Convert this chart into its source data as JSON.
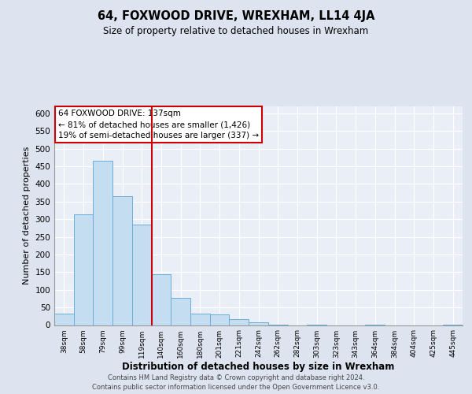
{
  "title": "64, FOXWOOD DRIVE, WREXHAM, LL14 4JA",
  "subtitle": "Size of property relative to detached houses in Wrexham",
  "xlabel": "Distribution of detached houses by size in Wrexham",
  "ylabel": "Number of detached properties",
  "bin_labels": [
    "38sqm",
    "58sqm",
    "79sqm",
    "99sqm",
    "119sqm",
    "140sqm",
    "160sqm",
    "180sqm",
    "201sqm",
    "221sqm",
    "242sqm",
    "262sqm",
    "282sqm",
    "303sqm",
    "323sqm",
    "343sqm",
    "364sqm",
    "384sqm",
    "404sqm",
    "425sqm",
    "445sqm"
  ],
  "bar_heights": [
    32,
    315,
    465,
    365,
    285,
    145,
    77,
    33,
    30,
    17,
    7,
    2,
    0,
    2,
    0,
    0,
    2,
    0,
    0,
    0,
    2
  ],
  "bar_color": "#c5ddf0",
  "bar_edge_color": "#6aaed6",
  "vline_x_idx": 5,
  "vline_color": "#cc0000",
  "annotation_text": "64 FOXWOOD DRIVE: 137sqm\n← 81% of detached houses are smaller (1,426)\n19% of semi-detached houses are larger (337) →",
  "annotation_box_color": "#ffffff",
  "annotation_box_edge": "#cc0000",
  "ylim": [
    0,
    620
  ],
  "yticks": [
    0,
    50,
    100,
    150,
    200,
    250,
    300,
    350,
    400,
    450,
    500,
    550,
    600
  ],
  "footer_line1": "Contains HM Land Registry data © Crown copyright and database right 2024.",
  "footer_line2": "Contains public sector information licensed under the Open Government Licence v3.0.",
  "bg_color": "#dde4f0",
  "plot_bg_color": "#eaeff7"
}
